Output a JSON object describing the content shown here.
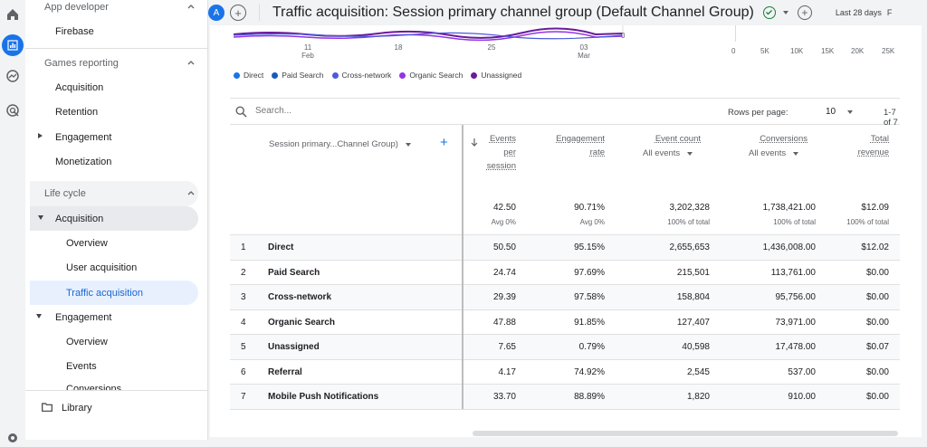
{
  "sidebar": {
    "app_developer": "App developer",
    "firebase": "Firebase",
    "games_reporting": "Games reporting",
    "acquisition": "Acquisition",
    "retention": "Retention",
    "engagement": "Engagement",
    "monetization": "Monetization",
    "life_cycle": "Life cycle",
    "lc_acquisition": "Acquisition",
    "overview": "Overview",
    "user_acquisition": "User acquisition",
    "traffic_acquisition": "Traffic acquisition",
    "lc_engagement": "Engagement",
    "eng_overview": "Overview",
    "events": "Events",
    "conversions": "Conversions",
    "library": "Library"
  },
  "header": {
    "avatar_letter": "A",
    "plus": "+",
    "title": "Traffic acquisition: Session primary channel group (Default Channel Group)",
    "date_range": "Last 28 days",
    "date_extra": "F"
  },
  "chart": {
    "x_ticks": [
      {
        "label": "11",
        "sub": "Feb"
      },
      {
        "label": "18",
        "sub": ""
      },
      {
        "label": "25",
        "sub": ""
      },
      {
        "label": "03",
        "sub": "Mar"
      }
    ],
    "y_tick": "0",
    "bar_axis_ticks": [
      "0",
      "5K",
      "10K",
      "15K",
      "20K",
      "25K"
    ],
    "legend": [
      {
        "label": "Direct",
        "color": "#1a73e8"
      },
      {
        "label": "Paid Search",
        "color": "#185abc"
      },
      {
        "label": "Cross-network",
        "color": "#4b5bdb"
      },
      {
        "label": "Organic Search",
        "color": "#9334e6"
      },
      {
        "label": "Unassigned",
        "color": "#6a1b9a"
      }
    ]
  },
  "toolbar": {
    "search_placeholder": "Search...",
    "rows_per_page_label": "Rows per page:",
    "rows_per_page_value": "10",
    "range_label": "1-7 of 7"
  },
  "table": {
    "dimension_header": "Session primary...Channel Group)",
    "add_symbol": "+",
    "headers": {
      "events_per_session": [
        "Events",
        "per",
        "session"
      ],
      "engagement_rate": [
        "Engagement",
        "rate"
      ],
      "event_count": "Event count",
      "event_count_sub": "All events",
      "conversions": "Conversions",
      "conversions_sub": "All events",
      "total_revenue": [
        "Total",
        "revenue"
      ]
    },
    "totals": {
      "eps": "42.50",
      "eps_sub": "Avg 0%",
      "er": "90.71%",
      "er_sub": "Avg 0%",
      "ec": "3,202,328",
      "ec_sub": "100% of total",
      "conv": "1,738,421.00",
      "conv_sub": "100% of total",
      "rev": "$12.09",
      "rev_sub": "100% of total"
    },
    "rows": [
      {
        "idx": "1",
        "name": "Direct",
        "eps": "50.50",
        "er": "95.15%",
        "ec": "2,655,653",
        "conv": "1,436,008.00",
        "rev": "$12.02"
      },
      {
        "idx": "2",
        "name": "Paid Search",
        "eps": "24.74",
        "er": "97.69%",
        "ec": "215,501",
        "conv": "113,761.00",
        "rev": "$0.00"
      },
      {
        "idx": "3",
        "name": "Cross-network",
        "eps": "29.39",
        "er": "97.58%",
        "ec": "158,804",
        "conv": "95,756.00",
        "rev": "$0.00"
      },
      {
        "idx": "4",
        "name": "Organic Search",
        "eps": "47.88",
        "er": "91.85%",
        "ec": "127,407",
        "conv": "73,971.00",
        "rev": "$0.00"
      },
      {
        "idx": "5",
        "name": "Unassigned",
        "eps": "7.65",
        "er": "0.79%",
        "ec": "40,598",
        "conv": "17,478.00",
        "rev": "$0.07"
      },
      {
        "idx": "6",
        "name": "Referral",
        "eps": "4.17",
        "er": "74.92%",
        "ec": "2,545",
        "conv": "537.00",
        "rev": "$0.00"
      },
      {
        "idx": "7",
        "name": "Mobile Push Notifications",
        "eps": "33.70",
        "er": "88.89%",
        "ec": "1,820",
        "conv": "910.00",
        "rev": "$0.00"
      }
    ]
  }
}
